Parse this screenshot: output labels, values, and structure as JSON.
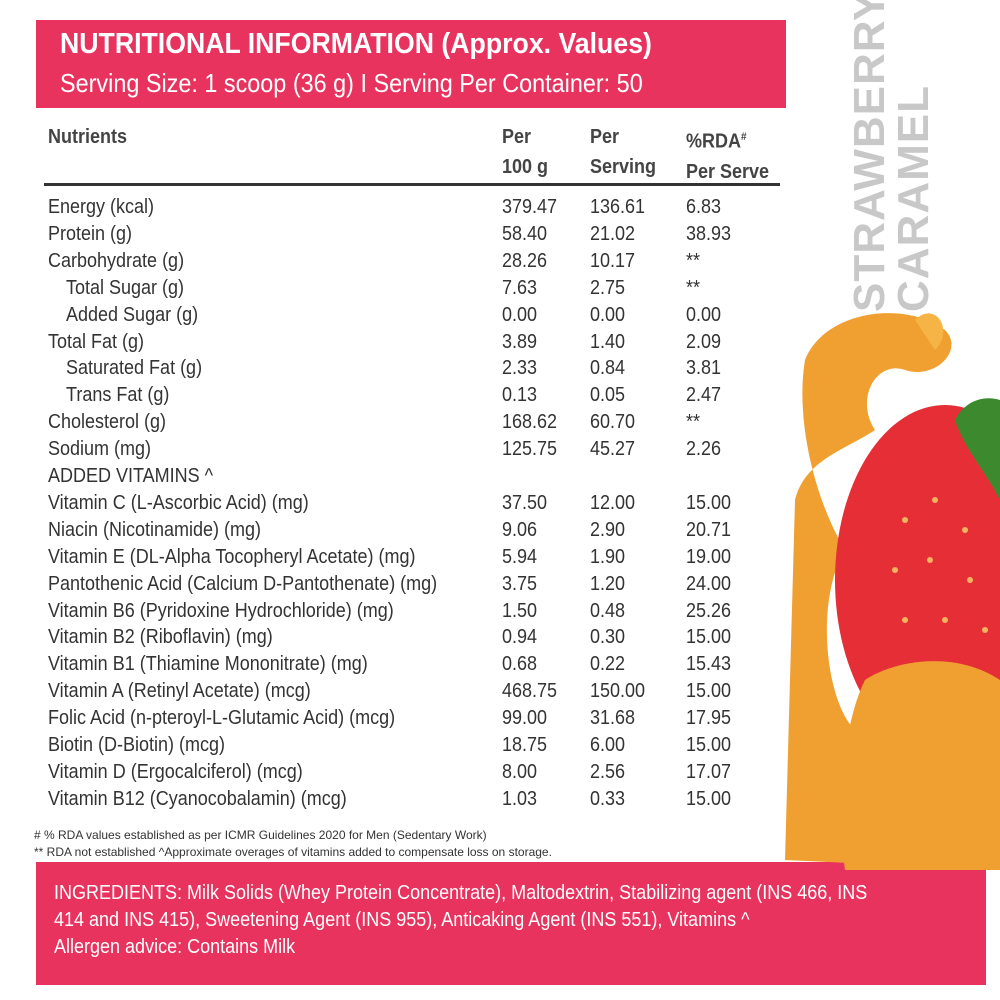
{
  "header": {
    "title": "NUTRITIONAL INFORMATION (Approx. Values)",
    "subtitle": "Serving Size: 1 scoop (36 g) I  Serving Per Container: 50"
  },
  "flavor": {
    "line1": "STRAWBERRY",
    "line2": "CARAMEL"
  },
  "columns": {
    "nutrients": "Nutrients",
    "per100_1": "Per",
    "per100_2": "100 g",
    "serving_1": "Per",
    "serving_2": "Serving",
    "rda_1": "%RDA",
    "rda_sup": "#",
    "rda_2": "Per Serve"
  },
  "rows": [
    {
      "name": "Energy (kcal)",
      "per100": "379.47",
      "serving": "136.61",
      "rda": "6.83"
    },
    {
      "name": "Protein (g)",
      "per100": "58.40",
      "serving": "21.02",
      "rda": "38.93"
    },
    {
      "name": "Carbohydrate (g)",
      "per100": "28.26",
      "serving": "10.17",
      "rda": "**"
    },
    {
      "name": "Total Sugar (g)",
      "per100": "7.63",
      "serving": "2.75",
      "rda": "**",
      "indent": true
    },
    {
      "name": "Added Sugar (g)",
      "per100": "0.00",
      "serving": "0.00",
      "rda": "0.00",
      "indent": true
    },
    {
      "name": "Total Fat (g)",
      "per100": "3.89",
      "serving": "1.40",
      "rda": "2.09"
    },
    {
      "name": "Saturated Fat (g)",
      "per100": "2.33",
      "serving": "0.84",
      "rda": "3.81",
      "indent": true
    },
    {
      "name": "Trans Fat (g)",
      "per100": "0.13",
      "serving": "0.05",
      "rda": "2.47",
      "indent": true
    },
    {
      "name": "Cholesterol (g)",
      "per100": "168.62",
      "serving": "60.70",
      "rda": "**"
    },
    {
      "name": "Sodium (mg)",
      "per100": "125.75",
      "serving": "45.27",
      "rda": "2.26"
    },
    {
      "name": "ADDED VITAMINS ^",
      "per100": "",
      "serving": "",
      "rda": ""
    },
    {
      "name": "Vitamin C (L-Ascorbic Acid) (mg)",
      "per100": "37.50",
      "serving": "12.00",
      "rda": "15.00"
    },
    {
      "name": "Niacin (Nicotinamide) (mg)",
      "per100": "9.06",
      "serving": "2.90",
      "rda": "20.71"
    },
    {
      "name": "Vitamin E (DL-Alpha Tocopheryl Acetate) (mg)",
      "per100": "5.94",
      "serving": "1.90",
      "rda": "19.00"
    },
    {
      "name": "Pantothenic Acid (Calcium D-Pantothenate) (mg)",
      "per100": "3.75",
      "serving": "1.20",
      "rda": "24.00"
    },
    {
      "name": "Vitamin B6 (Pyridoxine Hydrochloride) (mg)",
      "per100": "1.50",
      "serving": "0.48",
      "rda": "25.26"
    },
    {
      "name": "Vitamin B2 (Riboflavin) (mg)",
      "per100": "0.94",
      "serving": "0.30",
      "rda": "15.00"
    },
    {
      "name": "Vitamin B1 (Thiamine Mononitrate) (mg)",
      "per100": "0.68",
      "serving": "0.22",
      "rda": "15.43"
    },
    {
      "name": "Vitamin A (Retinyl Acetate) (mcg)",
      "per100": "468.75",
      "serving": "150.00",
      "rda": "15.00"
    },
    {
      "name": "Folic Acid (n-pteroyl-L-Glutamic Acid) (mcg)",
      "per100": "99.00",
      "serving": "31.68",
      "rda": "17.95"
    },
    {
      "name": "Biotin (D-Biotin) (mcg)",
      "per100": "18.75",
      "serving": "6.00",
      "rda": "15.00"
    },
    {
      "name": "Vitamin D (Ergocalciferol) (mcg)",
      "per100": "8.00",
      "serving": "2.56",
      "rda": "17.07"
    },
    {
      "name": "Vitamin B12 (Cyanocobalamin) (mcg)",
      "per100": "1.03",
      "serving": "0.33",
      "rda": "15.00"
    }
  ],
  "footnotes": {
    "note1": "# % RDA values established as per ICMR Guidelines 2020 for Men (Sedentary Work)",
    "note2": "** RDA not established  ^Approximate overages of vitamins added to compensate loss on storage."
  },
  "ingredients": {
    "line1": "INGREDIENTS:  Milk Solids (Whey Protein Concentrate), Maltodextrin, Stabilizing agent (INS 466, INS",
    "line2": "414 and INS 415), Sweetening Agent (INS 955), Anticaking Agent (INS 551), Vitamins ^",
    "line3": "Allergen advice: Contains Milk"
  },
  "colors": {
    "brand": "#e8335f",
    "flavor_text": "#c8c8c8",
    "caramel": "#f0a030",
    "strawberry": "#e52e36"
  }
}
